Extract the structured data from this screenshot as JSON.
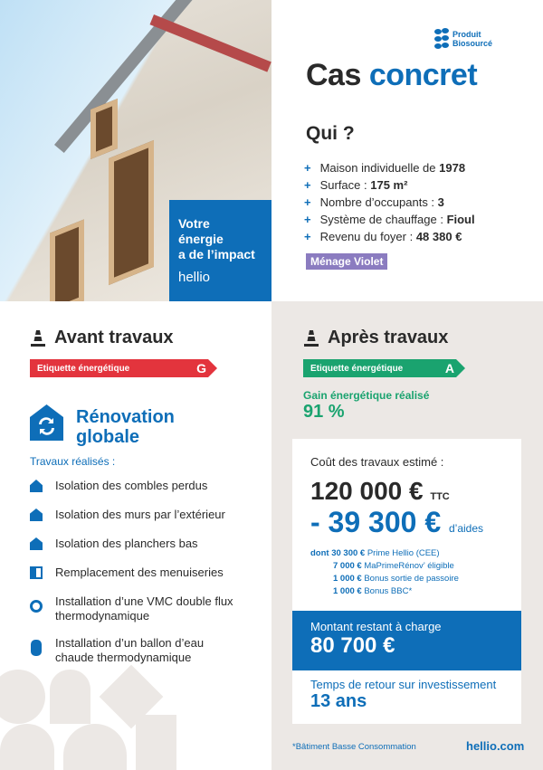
{
  "photo_promo": {
    "line1": "Votre",
    "line2": "énergie",
    "line3": "a de l’impact",
    "logo": "hellio"
  },
  "header": {
    "badge_line1": "Produit",
    "badge_line2": "Biosourcé",
    "title_dark": "Cas",
    "title_blue": "concret"
  },
  "qui": {
    "title": "Qui ?",
    "items": [
      {
        "label": "Maison individuelle de ",
        "value": "1978"
      },
      {
        "label": "Surface : ",
        "value": "175 m²"
      },
      {
        "label": "Nombre d’occupants : ",
        "value": "3"
      },
      {
        "label": "Système de chauffage : ",
        "value": "Fioul"
      },
      {
        "label": "Revenu du foyer : ",
        "value": "48 380 €"
      }
    ],
    "household_badge": "Ménage Violet",
    "household_color": "#8b7cc0"
  },
  "avant": {
    "title": "Avant travaux",
    "label_text": "Etiquette énergétique",
    "grade": "G",
    "color": "#e3343d"
  },
  "apres": {
    "title": "Après travaux",
    "label_text": "Etiquette énergétique",
    "grade": "A",
    "color": "#1aa36f",
    "gain_label": "Gain énergétique réalisé",
    "gain_value": "91 %"
  },
  "renovation": {
    "title_line1": "Rénovation",
    "title_line2": "globale",
    "subtitle": "Travaux réalisés :",
    "items": [
      {
        "icon": "roof-insulation-icon",
        "line1": "Isolation des combles perdus",
        "line2": ""
      },
      {
        "icon": "wall-insulation-icon",
        "line1": "Isolation des murs par l’extérieur",
        "line2": ""
      },
      {
        "icon": "floor-insulation-icon",
        "line1": "Isolation des planchers bas",
        "line2": ""
      },
      {
        "icon": "window-icon",
        "line1": "Remplacement des menuiseries",
        "line2": ""
      },
      {
        "icon": "ventilation-fan-icon",
        "line1": "Installation d’une VMC double flux",
        "line2": "thermodynamique"
      },
      {
        "icon": "water-heater-icon",
        "line1": "Installation d’un ballon d’eau",
        "line2": "chaude thermodynamique"
      }
    ]
  },
  "cost": {
    "label": "Coût des travaux estimé :",
    "total": "120 000 €",
    "total_suffix": "TTC",
    "aid": "- 39 300 €",
    "aid_suffix": "d’aides",
    "breakdown": [
      {
        "prefix": "dont ",
        "amount": "30 300 €",
        "label": " Prime Hellio (CEE)"
      },
      {
        "prefix": "",
        "amount": "7 000 €",
        "label": " MaPrimeRénov’ éligible"
      },
      {
        "prefix": "",
        "amount": "1 000 €",
        "label": " Bonus sortie de passoire"
      },
      {
        "prefix": "",
        "amount": "1 000 €",
        "label": " Bonus BBC*"
      }
    ]
  },
  "remaining": {
    "label": "Montant restant à charge",
    "value": "80 700 €"
  },
  "roi": {
    "label": "Temps de retour sur investissement",
    "value": "13 ans"
  },
  "footer": {
    "footnote": "*Bâtiment Basse Consommation",
    "website": "hellio.com"
  },
  "colors": {
    "brand_blue": "#0e6eb8",
    "beige": "#ece8e5"
  }
}
